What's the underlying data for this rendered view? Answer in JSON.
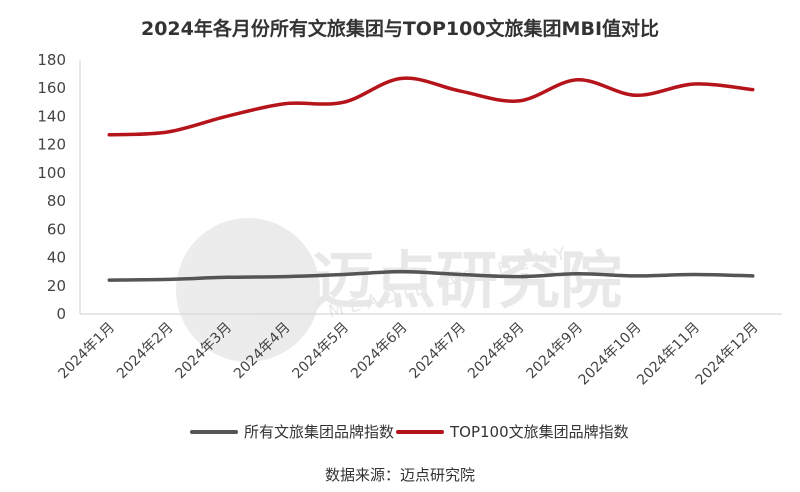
{
  "source_note": "数据来源：迈点研究院",
  "watermark": {
    "main": "迈点研究院",
    "sub": "MEADIN ACADEMY"
  },
  "chart_data": {
    "type": "line",
    "title": "2024年各月份所有文旅集团与TOP100文旅集团MBI值对比",
    "xlabel": "",
    "ylabel": "",
    "categories": [
      "2024年1月",
      "2024年2月",
      "2024年3月",
      "2024年4月",
      "2024年5月",
      "2024年6月",
      "2024年7月",
      "2024年8月",
      "2024年9月",
      "2024年10月",
      "2024年11月",
      "2024年12月"
    ],
    "ylim": [
      0,
      180
    ],
    "yticks": [
      0,
      20,
      40,
      60,
      80,
      100,
      120,
      140,
      160,
      180
    ],
    "grid": false,
    "legend": "bottom",
    "series": [
      {
        "name": "所有文旅集团品牌指数",
        "color": "#555555",
        "values": [
          24,
          24.5,
          26,
          26.5,
          28,
          30,
          28,
          26.5,
          28.5,
          27,
          28,
          27
        ]
      },
      {
        "name": "TOP100文旅集团品牌指数",
        "color": "#b5141b",
        "values": [
          127,
          129,
          140,
          149,
          150,
          167,
          158,
          151,
          166,
          155,
          163,
          159
        ]
      }
    ]
  }
}
